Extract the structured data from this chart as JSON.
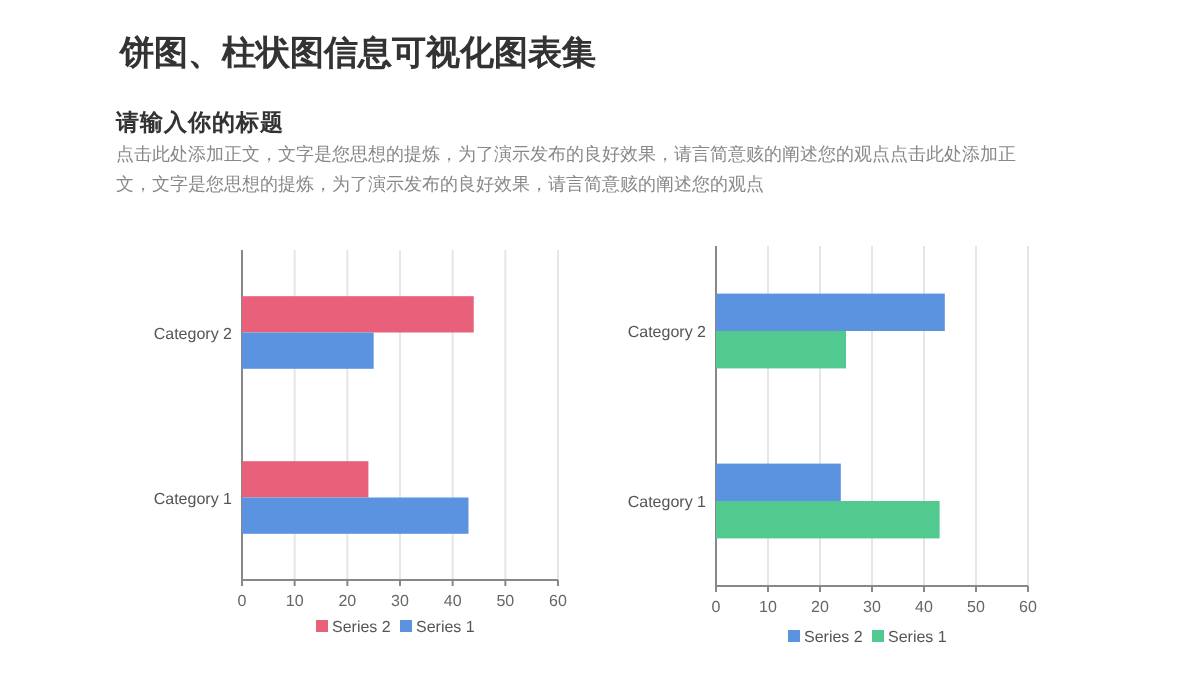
{
  "chart_data": [
    {
      "type": "bar",
      "orientation": "horizontal",
      "title": "饼图、柱状图信息可视化图表集",
      "subtitle": "请输入你的标题",
      "annotations": [
        "点击此处添加正文，文字是您思想的提炼，为了演示发布的良好效果，请言简意赅的阐述您的观点点击此处添加正文，文字是您思想的提炼，为了演示发布的良好效果，请言简意赅的阐述您的观点"
      ],
      "categories": [
        "Category 2",
        "Category 1"
      ],
      "series": [
        {
          "name": "Series 2",
          "color": "#e8607a",
          "values": [
            44,
            24
          ]
        },
        {
          "name": "Series 1",
          "color": "#5b93e0",
          "values": [
            25,
            43
          ]
        }
      ],
      "xlim": [
        0,
        60
      ],
      "xticks": [
        0,
        10,
        20,
        30,
        40,
        50,
        60
      ],
      "grid": "x",
      "legend": "bottom"
    },
    {
      "type": "bar",
      "orientation": "horizontal",
      "categories": [
        "Category 2",
        "Category 1"
      ],
      "series": [
        {
          "name": "Series 2",
          "color": "#5b93e0",
          "values": [
            44,
            24
          ]
        },
        {
          "name": "Series 1",
          "color": "#52c98f",
          "values": [
            25,
            43
          ]
        }
      ],
      "xlim": [
        0,
        60
      ],
      "xticks": [
        0,
        10,
        20,
        30,
        40,
        50,
        60
      ],
      "grid": "x",
      "legend": "bottom"
    }
  ]
}
